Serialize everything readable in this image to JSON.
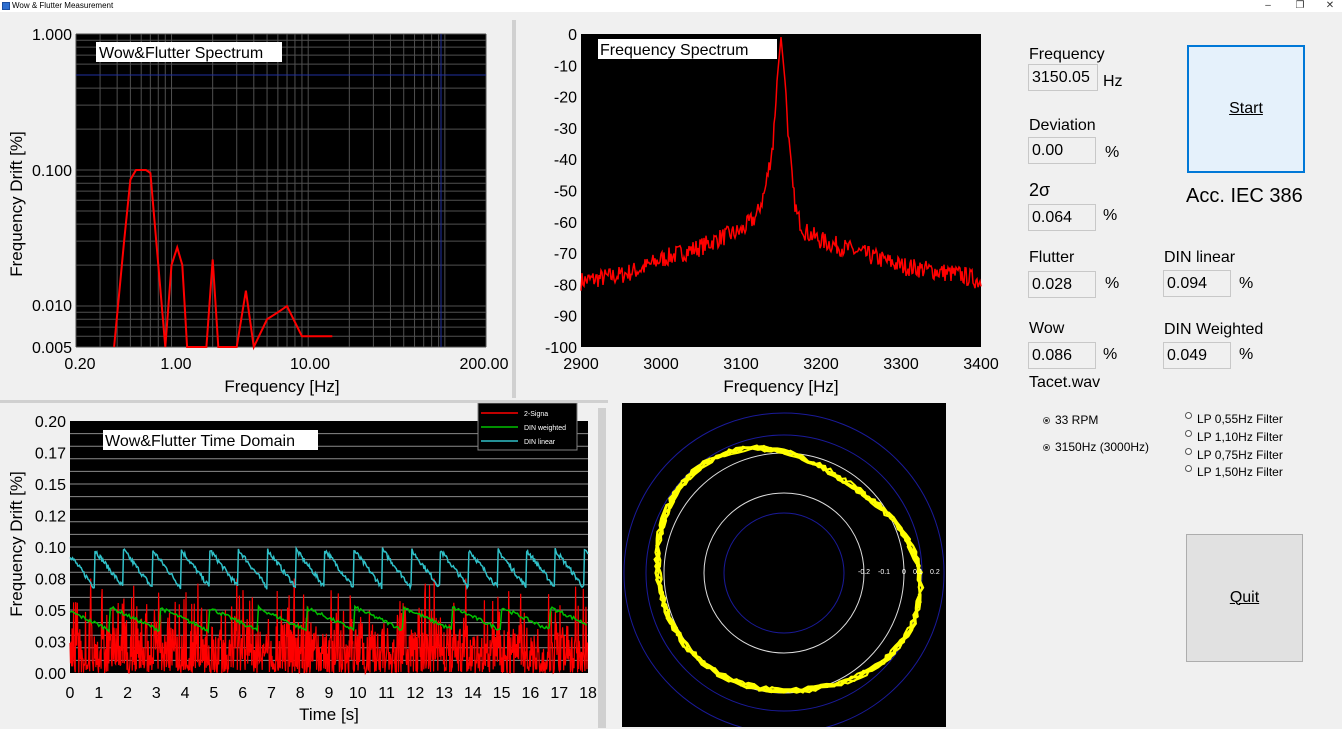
{
  "window": {
    "title": "Wow & Flutter Measurement",
    "minimize": "–",
    "restore": "❐",
    "close": "✕"
  },
  "spectrum_chart": {
    "title": "Wow&Flutter Spectrum",
    "xlabel": "Frequency [Hz]",
    "ylabel": "Frequency Drift [%]",
    "x_ticks": [
      "0.20",
      "1.00",
      "10.00",
      "200.00"
    ],
    "y_ticks": [
      "1.000",
      "0.100",
      "0.010",
      "0.005"
    ]
  },
  "freq_chart": {
    "title": "Frequency Spectrum",
    "xlabel": "Frequency [Hz]",
    "x_ticks": [
      "2900",
      "3000",
      "3100",
      "3200",
      "3300",
      "3400"
    ],
    "y_ticks": [
      "0",
      "-10",
      "-20",
      "-30",
      "-40",
      "-50",
      "-60",
      "-70",
      "-80",
      "-90",
      "-100"
    ]
  },
  "time_chart": {
    "title": "Wow&Flutter Time Domain",
    "xlabel": "Time [s]",
    "ylabel": "Frequency Drift [%]",
    "x_ticks": [
      "0",
      "1",
      "2",
      "3",
      "4",
      "5",
      "6",
      "7",
      "8",
      "9",
      "10",
      "11",
      "12",
      "13",
      "14",
      "15",
      "16",
      "17",
      "18"
    ],
    "y_ticks": [
      "0.20",
      "0.17",
      "0.15",
      "0.12",
      "0.10",
      "0.08",
      "0.05",
      "0.03",
      "0.00"
    ],
    "legend": [
      {
        "name": "2-Signa",
        "color": "#ff0000"
      },
      {
        "name": "DIN weighted",
        "color": "#00c000"
      },
      {
        "name": "DIN linear",
        "color": "#30c0c8"
      }
    ]
  },
  "polar_plot": {
    "axis_labels": [
      "-0.2",
      "-0.1",
      "0",
      "0.1",
      "0.2"
    ]
  },
  "measurements": {
    "frequency_label": "Frequency",
    "frequency_value": "3150.05",
    "frequency_unit": "Hz",
    "deviation_label": "Deviation",
    "deviation_value": "0.00",
    "deviation_unit": "%",
    "sigma_label": "2σ",
    "sigma_value": "0.064",
    "sigma_unit": "%",
    "flutter_label": "Flutter",
    "flutter_value": "0.028",
    "flutter_unit": "%",
    "wow_label": "Wow",
    "wow_value": "0.086",
    "wow_unit": "%",
    "din_linear_label": "DIN linear",
    "din_linear_value": "0.094",
    "din_linear_unit": "%",
    "din_weighted_label": "DIN Weighted",
    "din_weighted_value": "0.049",
    "din_weighted_unit": "%",
    "filename": "Tacet.wav",
    "standard": "Acc. IEC 386"
  },
  "buttons": {
    "start": "Start",
    "quit": "Quit"
  },
  "options": {
    "rpm": "33 RPM",
    "tone": "3150Hz (3000Hz)",
    "filters": [
      "LP 0,55Hz Filter",
      "LP 1,10Hz Filter",
      "LP 0,75Hz Filter",
      "LP 1,50Hz Filter"
    ]
  },
  "chart_data": [
    {
      "type": "line",
      "title": "Wow&Flutter Spectrum",
      "xlabel": "Frequency [Hz]",
      "ylabel": "Frequency Drift [%]",
      "x_scale": "log",
      "y_scale": "log",
      "xlim": [
        0.2,
        200
      ],
      "ylim": [
        0.005,
        1.0
      ],
      "grid": true,
      "background": "#000000",
      "line_color": "#ff0000",
      "series": [
        {
          "x": [
            0.38,
            0.45,
            0.5,
            0.55,
            0.6,
            0.65,
            0.7,
            0.8,
            0.9,
            1.0,
            1.1,
            1.2,
            1.3,
            1.8,
            2.0,
            2.2,
            2.5,
            3.0,
            3.5,
            4.0,
            5.0,
            6.0,
            7.0,
            9.0,
            15.0
          ],
          "y": [
            0.005,
            0.03,
            0.085,
            0.1,
            0.1,
            0.1,
            0.095,
            0.02,
            0.005,
            0.02,
            0.027,
            0.02,
            0.005,
            0.005,
            0.022,
            0.005,
            0.005,
            0.005,
            0.013,
            0.005,
            0.008,
            0.009,
            0.01,
            0.006,
            0.006
          ]
        }
      ],
      "reference_line": 0.5
    },
    {
      "type": "line",
      "title": "Frequency Spectrum",
      "xlabel": "Frequency [Hz]",
      "xlim": [
        2900,
        3400
      ],
      "ylim": [
        -100,
        0
      ],
      "grid": false,
      "background": "#000000",
      "line_color": "#ff0000",
      "series": [
        {
          "x": [
            2900,
            2925,
            2950,
            2975,
            3000,
            3025,
            3050,
            3075,
            3100,
            3120,
            3130,
            3140,
            3145,
            3150,
            3155,
            3160,
            3165,
            3170,
            3180,
            3200,
            3225,
            3250,
            3275,
            3300,
            3325,
            3350,
            3375,
            3400
          ],
          "y": [
            -79,
            -78,
            -77,
            -75,
            -72,
            -70,
            -68,
            -65,
            -63,
            -58,
            -50,
            -35,
            -15,
            -1,
            -15,
            -35,
            -50,
            -58,
            -63,
            -66,
            -68,
            -70,
            -72,
            -74,
            -75,
            -76,
            -77,
            -79
          ]
        }
      ]
    },
    {
      "type": "line",
      "title": "Wow&Flutter Time Domain",
      "xlabel": "Time [s]",
      "ylabel": "Frequency Drift [%]",
      "xlim": [
        0,
        18
      ],
      "ylim": [
        0,
        0.2
      ],
      "grid": true,
      "background": "#000000",
      "series": [
        {
          "name": "2-Signa",
          "color": "#ff0000",
          "approx_range": [
            0.0,
            0.07
          ]
        },
        {
          "name": "DIN weighted",
          "color": "#00c000",
          "approx_range": [
            0.03,
            0.05
          ]
        },
        {
          "name": "DIN linear",
          "color": "#30c0c8",
          "approx_range": [
            0.065,
            0.1
          ],
          "period_s": 1.0
        }
      ]
    },
    {
      "type": "scatter",
      "title": "",
      "polar": true,
      "rings": [
        -0.2,
        -0.1,
        0,
        0.1,
        0.2
      ],
      "background": "#000000",
      "trace_color": "#ffff00"
    }
  ]
}
